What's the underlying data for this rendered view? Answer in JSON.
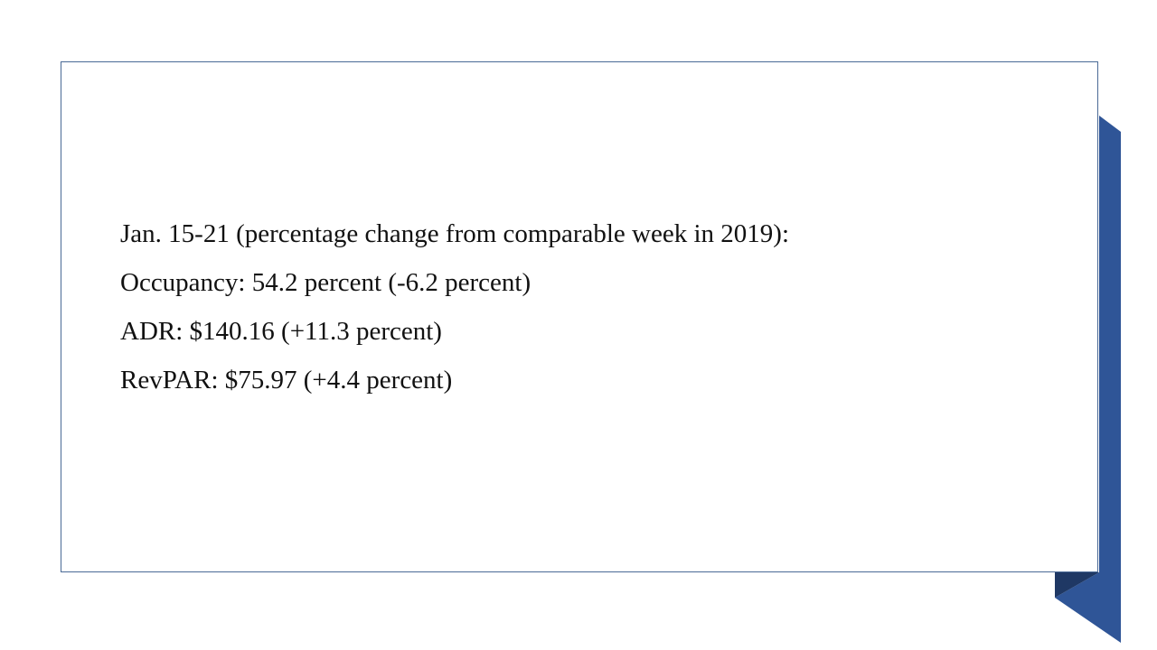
{
  "slide": {
    "lines": [
      "Jan. 15-21 (percentage change from comparable week in 2019):",
      "Occupancy: 54.2 percent (-6.2 percent)",
      "ADR: $140.16 (+11.3 percent)",
      "RevPAR: $75.97 (+4.4 percent)"
    ]
  },
  "colors": {
    "ribbon": "#2f5597",
    "ribbon_shadow": "#1f3864",
    "border": "#4a6a96"
  }
}
